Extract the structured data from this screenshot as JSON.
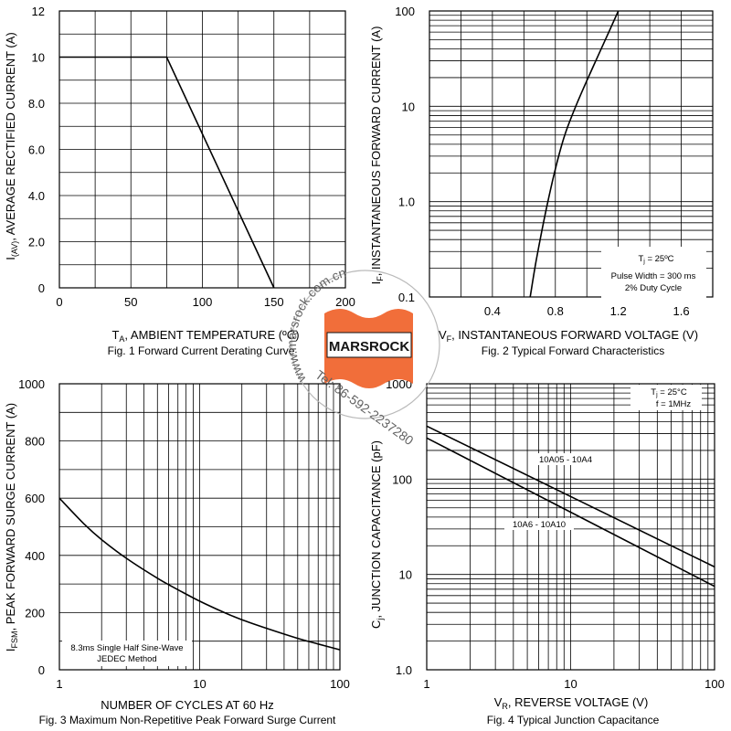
{
  "chart_data": [
    {
      "id": "fig1",
      "type": "line",
      "title": "Fig. 1  Forward Current Derating Curve",
      "xlabel_main": "T",
      "xlabel_sub": "A",
      "xlabel_rest": ", AMBIENT TEMPERATURE (ºC)",
      "ylabel_main": "I",
      "ylabel_sub": "(AV)",
      "ylabel_rest": ", AVERAGE RECTIFIED CURRENT (A)",
      "xlim": [
        0,
        200
      ],
      "ylim": [
        0,
        12
      ],
      "xticks": [
        0,
        50,
        100,
        150,
        200
      ],
      "xtick_labels": [
        "0",
        "50",
        "100",
        "150",
        "200"
      ],
      "yticks": [
        0,
        2,
        4,
        6,
        8,
        10,
        12
      ],
      "ytick_labels": [
        "0",
        "2.0",
        "4.0",
        "6.0",
        "8.0",
        "10",
        "12"
      ],
      "grid": true,
      "series": [
        {
          "x": [
            0,
            75,
            150
          ],
          "y": [
            10,
            10,
            0
          ]
        }
      ]
    },
    {
      "id": "fig2",
      "type": "line",
      "title": "Fig. 2  Typical Forward Characteristics",
      "xlabel_main": "V",
      "xlabel_sub": "F",
      "xlabel_rest": ", INSTANTANEOUS FORWARD VOLTAGE (V)",
      "ylabel_main": "I",
      "ylabel_sub": "F",
      "ylabel_rest": ", INSTANTANEOUS FORWARD CURRENT (A)",
      "xlim": [
        0,
        1.8
      ],
      "ylim": [
        0.1,
        100
      ],
      "yscale": "log",
      "xticks": [
        0.4,
        0.8,
        1.2,
        1.6
      ],
      "xtick_labels": [
        "0.4",
        "0.8",
        "1.2",
        "1.6"
      ],
      "yticks": [
        0.1,
        1,
        10,
        100
      ],
      "ytick_labels": [
        "0.1",
        "1.0",
        "10",
        "100"
      ],
      "grid": true,
      "annotations": {
        "tj_main": "T",
        "tj_sub": "j",
        "tj_rest": " = 25ºC",
        "pulse": "Pulse Width = 300 ms",
        "duty": "2% Duty Cycle"
      },
      "series": [
        {
          "x": [
            0.64,
            0.68,
            0.74,
            0.8,
            0.86,
            0.94,
            1.04,
            1.14,
            1.2
          ],
          "y": [
            0.1,
            0.25,
            0.8,
            2.2,
            5,
            11,
            26,
            60,
            100
          ]
        }
      ]
    },
    {
      "id": "fig3",
      "type": "line",
      "title": "Fig. 3  Maximum Non-Repetitive Peak Forward Surge Current",
      "xlabel_main": "NUMBER OF CYCLES AT 60 Hz",
      "ylabel_main": "I",
      "ylabel_sub": "FSM",
      "ylabel_rest": ", PEAK FORWARD SURGE CURRENT (A)",
      "xlim": [
        1,
        100
      ],
      "xscale": "log",
      "ylim": [
        0,
        1000
      ],
      "xticks": [
        1,
        10,
        100
      ],
      "xtick_labels": [
        "1",
        "10",
        "100"
      ],
      "yticks": [
        0,
        200,
        400,
        600,
        800,
        1000
      ],
      "ytick_labels": [
        "0",
        "200",
        "400",
        "600",
        "800",
        "1000"
      ],
      "grid": true,
      "annotations": {
        "line1": "8.3ms Single Half Sine-Wave",
        "line2": "JEDEC Method"
      },
      "series": [
        {
          "x": [
            1,
            1.5,
            2,
            3,
            5,
            7,
            10,
            15,
            20,
            30,
            50,
            70,
            100
          ],
          "y": [
            600,
            510,
            455,
            390,
            320,
            280,
            240,
            200,
            175,
            145,
            110,
            90,
            70
          ]
        }
      ]
    },
    {
      "id": "fig4",
      "type": "line",
      "title": "Fig. 4  Typical Junction Capacitance",
      "xlabel_main": "V",
      "xlabel_sub": "R",
      "xlabel_rest": ", REVERSE VOLTAGE (V)",
      "ylabel_main": "C",
      "ylabel_sub": "j",
      "ylabel_rest": ", JUNCTION CAPACITANCE (pF)",
      "xlim": [
        1,
        100
      ],
      "xscale": "log",
      "ylim": [
        1,
        1000
      ],
      "yscale": "log",
      "xticks": [
        1,
        10,
        100
      ],
      "xtick_labels": [
        "1",
        "10",
        "100"
      ],
      "yticks": [
        1,
        10,
        100,
        1000
      ],
      "ytick_labels": [
        "1.0",
        "10",
        "100",
        "1000"
      ],
      "grid": true,
      "annotations": {
        "tj_main": "T",
        "tj_sub": "j",
        "tj_rest": " = 25°C",
        "freq": "f = 1MHz"
      },
      "series": [
        {
          "name": "10A05 - 10A4",
          "x": [
            1,
            100
          ],
          "y": [
            360,
            12
          ]
        },
        {
          "name": "10A6 - 10A10",
          "x": [
            1,
            100
          ],
          "y": [
            270,
            7.5
          ]
        }
      ]
    }
  ],
  "watermark": {
    "url": "www.marsrock.com.cn",
    "brand": "MARSROCK",
    "tel": "Tel: 86-592-2237280"
  }
}
